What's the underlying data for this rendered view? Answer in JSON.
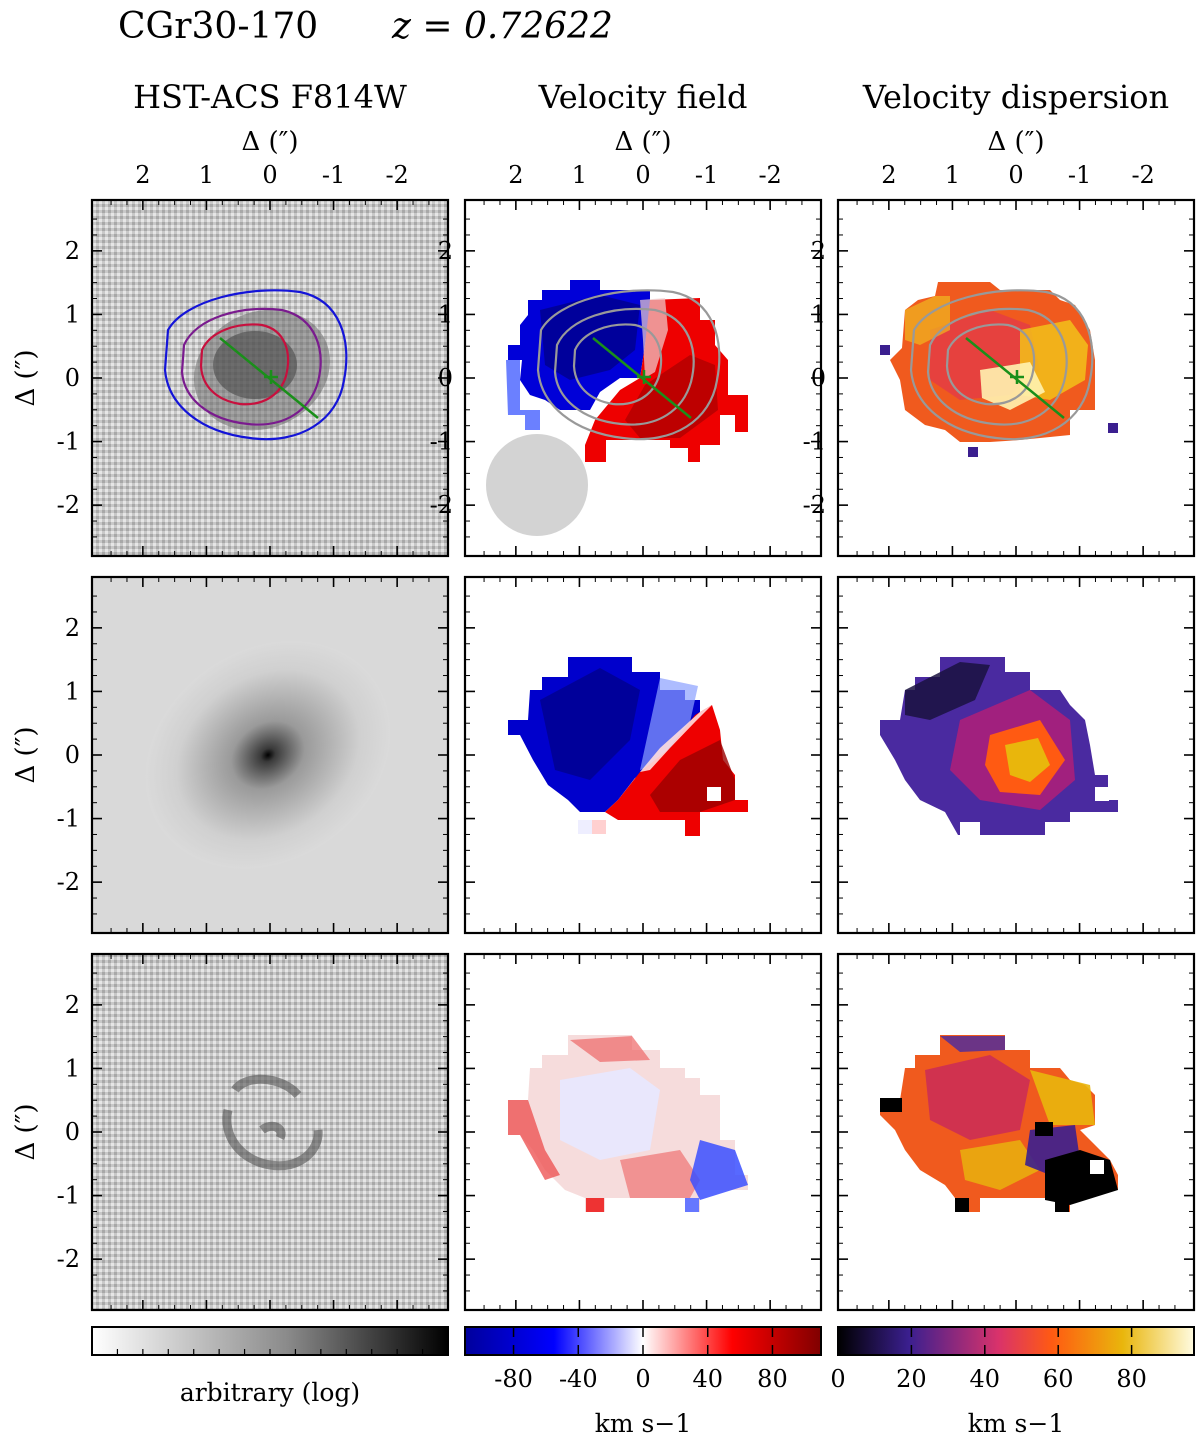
{
  "figure": {
    "object_name": "CGr30-170",
    "redshift_text": "z = 0.72622",
    "column_titles": [
      "HST-ACS F814W",
      "Velocity field",
      "Velocity dispersion"
    ],
    "top_axis_label": "Δ   (″)",
    "left_axis_label": "Δ   (″)",
    "colormaps": {
      "image": [
        "#ffffff",
        "#000000"
      ],
      "velocity": [
        "#0000aa",
        "#0000ff",
        "#ffffff",
        "#ff0000",
        "#800000"
      ],
      "dispersion": [
        "#000000",
        "#3b1f8f",
        "#d9326b",
        "#ff5a12",
        "#e9b60c",
        "#fffbe0"
      ]
    },
    "contour_colors": [
      "#1414d8",
      "#7a1b8e",
      "#c8103e"
    ],
    "model_contour_color": "#999999",
    "kinematic_axis_color": "#1a8f1a",
    "beam_color": "#d3d3d3"
  },
  "chart_data": [
    {
      "type": "heatmap",
      "panel": "HST-ACS F814W (observed)",
      "xlim": [
        2.8,
        -2.8
      ],
      "ylim": [
        -2.8,
        2.8
      ],
      "xticks": [
        "2",
        "1",
        "0",
        "-1",
        "-2"
      ],
      "yticks": [
        "2",
        "1",
        "0",
        "-1",
        "-2"
      ]
    },
    {
      "type": "heatmap",
      "panel": "Velocity field (observed)",
      "xlim": [
        2.8,
        -2.8
      ],
      "ylim": [
        -2.8,
        2.8
      ],
      "xticks": [
        "2",
        "1",
        "0",
        "-1",
        "-2"
      ],
      "yticks": [
        "2",
        "1",
        "0",
        "-1",
        "-2"
      ]
    },
    {
      "type": "heatmap",
      "panel": "Velocity dispersion (observed)",
      "xlim": [
        2.8,
        -2.8
      ],
      "ylim": [
        -2.8,
        2.8
      ],
      "xticks": [
        "2",
        "1",
        "0",
        "-1",
        "-2"
      ],
      "yticks": [
        "2",
        "1",
        "0",
        "-1",
        "-2"
      ]
    },
    {
      "type": "heatmap",
      "panel": "HST-ACS F814W (model)",
      "xlim": [
        2.8,
        -2.8
      ],
      "ylim": [
        -2.8,
        2.8
      ],
      "yticks": [
        "2",
        "1",
        "0",
        "-1",
        "-2"
      ]
    },
    {
      "type": "heatmap",
      "panel": "Velocity field (model)",
      "xlim": [
        2.8,
        -2.8
      ],
      "ylim": [
        -2.8,
        2.8
      ]
    },
    {
      "type": "heatmap",
      "panel": "Velocity dispersion (model)",
      "xlim": [
        2.8,
        -2.8
      ],
      "ylim": [
        -2.8,
        2.8
      ]
    },
    {
      "type": "heatmap",
      "panel": "HST-ACS F814W (residual)",
      "xlim": [
        2.8,
        -2.8
      ],
      "ylim": [
        -2.8,
        2.8
      ],
      "yticks": [
        "2",
        "1",
        "0",
        "-1",
        "-2"
      ]
    },
    {
      "type": "heatmap",
      "panel": "Velocity field (residual)",
      "xlim": [
        2.8,
        -2.8
      ],
      "ylim": [
        -2.8,
        2.8
      ]
    },
    {
      "type": "heatmap",
      "panel": "Velocity dispersion (residual)",
      "xlim": [
        2.8,
        -2.8
      ],
      "ylim": [
        -2.8,
        2.8
      ]
    },
    {
      "type": "colorbar",
      "label": "arbitrary (log)",
      "scale": "log",
      "tick_labels": []
    },
    {
      "type": "colorbar",
      "label": "km s−1",
      "range": [
        -110,
        110
      ],
      "ticks": [
        -80,
        -40,
        0,
        40,
        80
      ],
      "tick_labels": [
        "-80",
        "-40",
        "0",
        "40",
        "80"
      ]
    },
    {
      "type": "colorbar",
      "label": "km s−1",
      "range": [
        0,
        97
      ],
      "ticks": [
        0,
        20,
        40,
        60,
        80
      ],
      "tick_labels": [
        "0",
        "20",
        "40",
        "60",
        "80"
      ]
    }
  ]
}
